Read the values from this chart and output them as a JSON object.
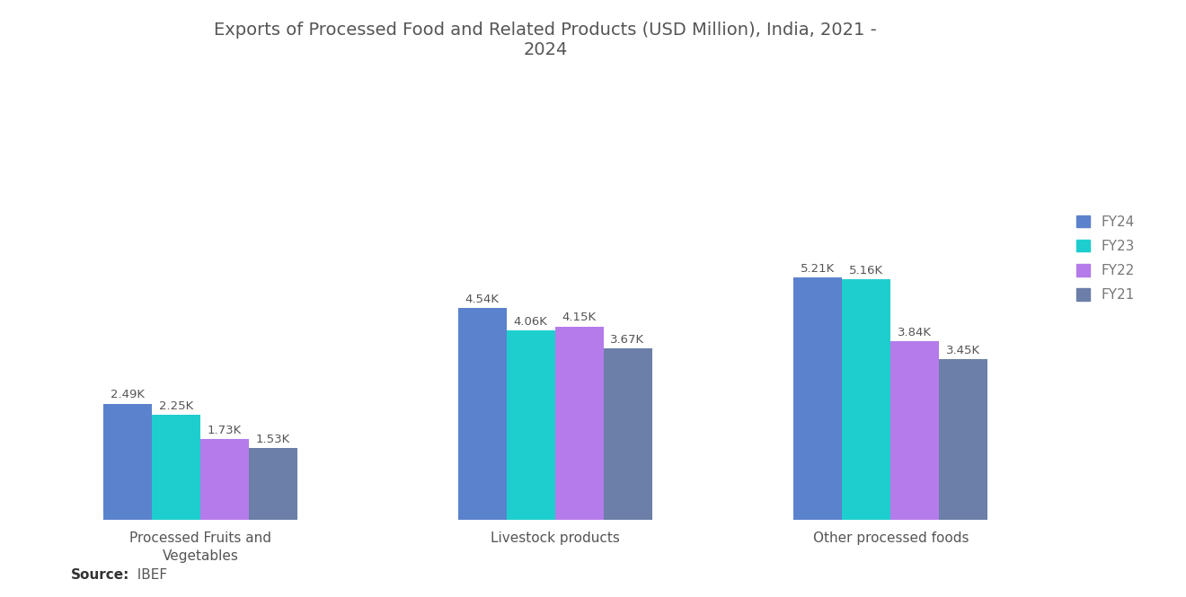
{
  "title": "Exports of Processed Food and Related Products (USD Million), India, 2021 -\n2024",
  "categories": [
    "Processed Fruits and\nVegetables",
    "Livestock products",
    "Other processed foods"
  ],
  "series": {
    "FY24": [
      2.49,
      4.54,
      5.21
    ],
    "FY23": [
      2.25,
      4.06,
      5.16
    ],
    "FY22": [
      1.73,
      4.15,
      3.84
    ],
    "FY21": [
      1.53,
      3.67,
      3.45
    ]
  },
  "colors": {
    "FY24": "#5B82CC",
    "FY23": "#1ECECE",
    "FY22": "#B57BEA",
    "FY21": "#6B7FA8"
  },
  "labels": {
    "FY24": [
      "2.49K",
      "4.54K",
      "5.21K"
    ],
    "FY23": [
      "2.25K",
      "4.06K",
      "5.16K"
    ],
    "FY22": [
      "1.73K",
      "4.15K",
      "3.84K"
    ],
    "FY21": [
      "1.53K",
      "3.67K",
      "3.45K"
    ]
  },
  "source_bold": "Source:",
  "source_rest": "  IBEF",
  "background_color": "#FFFFFF",
  "ylim": [
    0,
    9.5
  ],
  "bar_width": 0.13,
  "title_fontsize": 14,
  "label_fontsize": 9.5,
  "legend_fontsize": 11,
  "axis_label_fontsize": 11,
  "group_centers": [
    0.0,
    0.95,
    1.85
  ]
}
